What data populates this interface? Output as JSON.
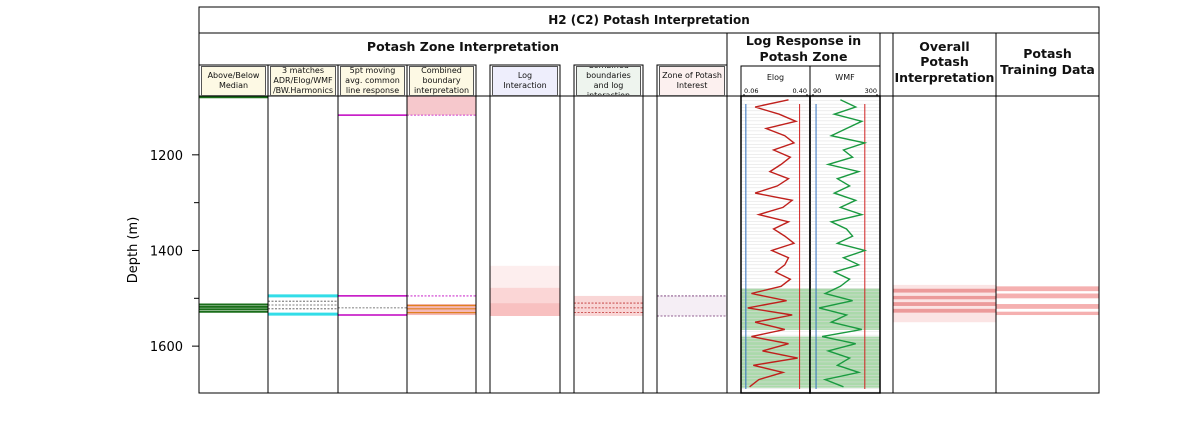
{
  "chart_data": {
    "type": "well-log",
    "title": "H2 (C2) Potash Interpretation",
    "y_label": "Depth (m)",
    "ylim": [
      1077,
      1698
    ],
    "yticks": [
      1200,
      1400,
      1600
    ],
    "minor_yticks": [
      1300,
      1500
    ],
    "groups": [
      {
        "title": "Potash Zone Interpretation"
      },
      {
        "title": "Log Response in Potash Zone"
      }
    ],
    "tracks": [
      {
        "title": "Above/Below Median",
        "header_color": "#fdf9e4",
        "lines": [
          {
            "depth": 1079,
            "color": "#1a6e1a",
            "width": 2.5
          },
          {
            "depth": 1513,
            "color": "#1a6e1a",
            "width": 2
          },
          {
            "depth": 1518,
            "color": "#1a6e1a",
            "width": 2
          },
          {
            "depth": 1523,
            "color": "#1a6e1a",
            "width": 2
          },
          {
            "depth": 1528,
            "color": "#1a6e1a",
            "width": 2
          }
        ],
        "bands": []
      },
      {
        "title": "3 matches ADR/Elog/WMF /BW.Harmonics",
        "header_color": "#fdf9e4",
        "bands": [],
        "lines": [
          {
            "depth": 1495,
            "color": "#33dde8",
            "width": 3
          },
          {
            "depth": 1533,
            "color": "#33dde8",
            "width": 3
          },
          {
            "depth": 1506,
            "color": "#555",
            "width": 0.8,
            "dash": true
          },
          {
            "depth": 1514,
            "color": "#555",
            "width": 0.8,
            "dash": true
          },
          {
            "depth": 1522,
            "color": "#555",
            "width": 0.8,
            "dash": true
          }
        ]
      },
      {
        "title": "5pt moving avg. common line response",
        "header_color": "#fdf9e4",
        "bands": [],
        "lines": [
          {
            "depth": 1117,
            "color": "#c000c0",
            "width": 1.5
          },
          {
            "depth": 1495,
            "color": "#c000c0",
            "width": 1.5
          },
          {
            "depth": 1535,
            "color": "#c000c0",
            "width": 1.5
          },
          {
            "depth": 1520,
            "color": "#555",
            "width": 0.8,
            "dash": true
          }
        ]
      },
      {
        "title": "Combined boundary interpretation",
        "header_color": "#fdf9e4",
        "bands": [
          {
            "top": 1077,
            "base": 1117,
            "color": "#f6c8cc"
          },
          {
            "top": 1512,
            "base": 1535,
            "color": "#f4b8b8"
          }
        ],
        "lines": [
          {
            "depth": 1117,
            "color": "#c000c0",
            "width": 0.8,
            "dash": true
          },
          {
            "depth": 1495,
            "color": "#c000c0",
            "width": 0.8,
            "dash": true
          },
          {
            "depth": 1515,
            "color": "#e08020",
            "width": 1.2
          },
          {
            "depth": 1522,
            "color": "#e08020",
            "width": 1.2
          },
          {
            "depth": 1530,
            "color": "#e08020",
            "width": 1.2
          }
        ]
      },
      {
        "title": "Log Interaction",
        "header_color": "#eeeefc",
        "bands": [
          {
            "top": 1432,
            "base": 1478,
            "color": "#fdeeee"
          },
          {
            "top": 1478,
            "base": 1510,
            "color": "#fbd6d6"
          },
          {
            "top": 1510,
            "base": 1537,
            "color": "#f8c0c0"
          }
        ],
        "lines": []
      },
      {
        "title": "Combined boundaries and log interaction",
        "header_color": "#eef4ee",
        "bands": [
          {
            "top": 1495,
            "base": 1537,
            "color": "#f9d6d6"
          }
        ],
        "lines": [
          {
            "depth": 1510,
            "color": "#c03030",
            "width": 0.8,
            "dash": true
          },
          {
            "depth": 1520,
            "color": "#c03030",
            "width": 0.8,
            "dash": true
          },
          {
            "depth": 1530,
            "color": "#c03030",
            "width": 0.8,
            "dash": true
          }
        ]
      },
      {
        "title": "Zone of Potash Interest",
        "header_color": "#fcf0ef",
        "bands": [
          {
            "top": 1495,
            "base": 1537,
            "color": "#f5eef5"
          }
        ],
        "lines": [
          {
            "depth": 1495,
            "color": "#703070",
            "width": 0.8,
            "dash": true
          },
          {
            "depth": 1537,
            "color": "#703070",
            "width": 0.8,
            "dash": true
          }
        ]
      },
      {
        "title": "Elog",
        "curve": "elog",
        "xlim": [
          0.06,
          0.4
        ],
        "xticks": [
          0.06,
          {
            "value": 0.4,
            "label": "0.40"
          }
        ],
        "color": "#c0201c",
        "ref_lines": [
          {
            "value": 0.07,
            "color": "#3070c0"
          },
          {
            "value": 0.36,
            "color": "#d02020"
          }
        ],
        "bands": [
          {
            "top": 1480,
            "base": 1566,
            "color": "#8fcc8f"
          },
          {
            "top": 1580,
            "base": 1687,
            "color": "#8fcc8f"
          }
        ],
        "lines": []
      },
      {
        "title": "WMF",
        "curve": "wmf",
        "xlim": [
          90,
          300
        ],
        "xticks": [
          90,
          300
        ],
        "color": "#1a9a40",
        "ref_lines": [
          {
            "value": 100,
            "color": "#3070c0"
          },
          {
            "value": 260,
            "color": "#d02020"
          }
        ],
        "bands": [
          {
            "top": 1480,
            "base": 1566,
            "color": "#8fcc8f"
          },
          {
            "top": 1580,
            "base": 1687,
            "color": "#8fcc8f"
          }
        ],
        "lines": []
      },
      {
        "title": "Overall Potash Interpretation",
        "bands": [
          {
            "top": 1472,
            "base": 1550,
            "color": "#fbe4e4"
          },
          {
            "top": 1480,
            "base": 1488,
            "color": "#ec9a9a"
          },
          {
            "top": 1495,
            "base": 1502,
            "color": "#ec9a9a"
          },
          {
            "top": 1508,
            "base": 1516,
            "color": "#ec9a9a"
          },
          {
            "top": 1522,
            "base": 1530,
            "color": "#ec9a9a"
          }
        ],
        "lines": []
      },
      {
        "title": "Potash Training Data",
        "bands": [
          {
            "top": 1475,
            "base": 1485,
            "color": "#f5b0b0"
          },
          {
            "top": 1490,
            "base": 1500,
            "color": "#f5b0b0"
          },
          {
            "top": 1512,
            "base": 1522,
            "color": "#f5b0b0"
          },
          {
            "top": 1528,
            "base": 1535,
            "color": "#f5b0b0"
          }
        ],
        "lines": []
      }
    ],
    "curves": {
      "depths": [
        1085,
        1100,
        1115,
        1130,
        1145,
        1160,
        1175,
        1190,
        1205,
        1220,
        1235,
        1250,
        1265,
        1280,
        1295,
        1310,
        1325,
        1340,
        1355,
        1370,
        1385,
        1400,
        1415,
        1430,
        1445,
        1460,
        1475,
        1490,
        1505,
        1520,
        1535,
        1550,
        1565,
        1580,
        1595,
        1610,
        1625,
        1640,
        1655,
        1670,
        1685
      ],
      "elog": [
        0.3,
        0.12,
        0.25,
        0.34,
        0.18,
        0.28,
        0.33,
        0.22,
        0.31,
        0.26,
        0.2,
        0.3,
        0.24,
        0.12,
        0.32,
        0.27,
        0.14,
        0.3,
        0.22,
        0.28,
        0.33,
        0.21,
        0.3,
        0.28,
        0.23,
        0.31,
        0.26,
        0.1,
        0.29,
        0.08,
        0.32,
        0.12,
        0.28,
        0.1,
        0.3,
        0.16,
        0.35,
        0.11,
        0.27,
        0.14,
        0.09
      ],
      "wmf": [
        180,
        230,
        160,
        250,
        200,
        150,
        260,
        190,
        220,
        140,
        240,
        170,
        210,
        160,
        230,
        180,
        250,
        150,
        200,
        220,
        170,
        260,
        190,
        240,
        160,
        210,
        180,
        130,
        220,
        110,
        200,
        150,
        250,
        120,
        230,
        140,
        210,
        170,
        240,
        130,
        190
      ]
    }
  }
}
